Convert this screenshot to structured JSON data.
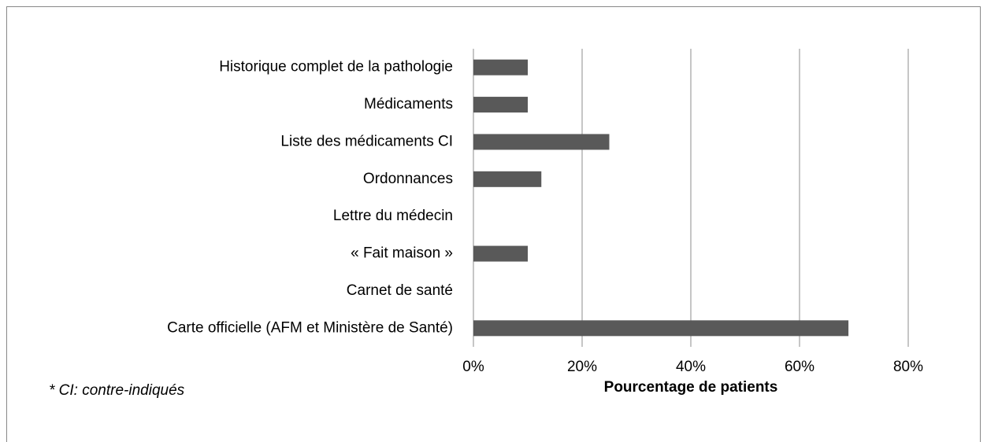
{
  "chart_data": {
    "type": "barh",
    "categories": [
      "Historique complet de la pathologie",
      "Médicaments",
      "Liste des médicaments CI",
      "Ordonnances",
      "Lettre du médecin",
      "« Fait maison »",
      "Carnet de santé",
      "Carte officielle (AFM et Ministère de Santé)"
    ],
    "values": [
      10,
      10,
      25,
      12.5,
      0,
      10,
      0,
      69
    ],
    "color": "#595959",
    "xlim": [
      0,
      80
    ],
    "xticks": [
      {
        "value": 0,
        "label": "0%"
      },
      {
        "value": 20,
        "label": "20%"
      },
      {
        "value": 40,
        "label": "40%"
      },
      {
        "value": 60,
        "label": "60%"
      },
      {
        "value": 80,
        "label": "80%"
      }
    ],
    "grid": true,
    "x_label": "Pourcentage de patients",
    "annotation": "* CI: contre-indiqués"
  }
}
